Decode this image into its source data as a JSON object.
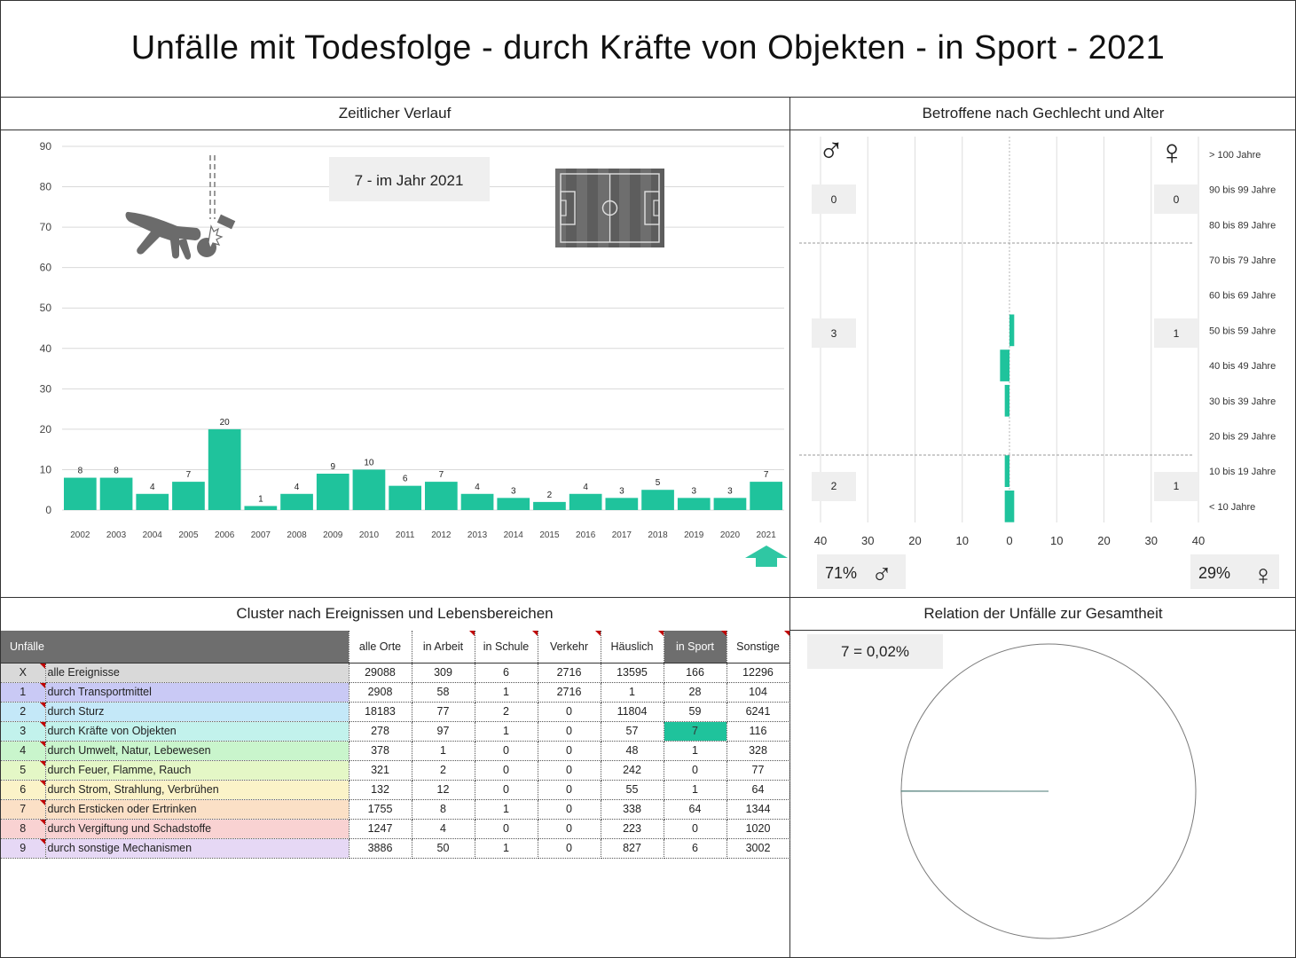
{
  "title": "Unfälle mit Todesfolge - durch Kräfte von Objekten - in Sport - 2021",
  "colors": {
    "accent": "#1fc39c",
    "header_dark": "#6e6e6e",
    "callout": "#efefef"
  },
  "timeline": {
    "heading": "Zeitlicher Verlauf",
    "callout": "7 - im Jahr 2021",
    "icons": [
      "falling-person-icon",
      "football-field-icon",
      "up-arrow-icon"
    ]
  },
  "demographics": {
    "heading": "Betroffene nach Gechlecht und Alter",
    "male_symbol": "♂",
    "female_symbol": "♀",
    "group_male": [
      "0",
      "3",
      "2"
    ],
    "group_female": [
      "0",
      "1",
      "1"
    ],
    "male_share": "71%",
    "female_share": "29%"
  },
  "cluster": {
    "heading": "Cluster nach Ereignissen und Lebensbereichen",
    "columns": [
      "Unfälle",
      "alle Orte",
      "in Arbeit",
      "in Schule",
      "Verkehr",
      "Häuslich",
      "in Sport",
      "Sonstige"
    ],
    "rows": [
      {
        "id": "X",
        "label": "alle Ereignisse",
        "color": "#d9d9d9",
        "values": [
          "29088",
          "309",
          "6",
          "2716",
          "13595",
          "166",
          "12296"
        ]
      },
      {
        "id": "1",
        "label": "durch Transportmittel",
        "color": "#c9c9f5",
        "values": [
          "2908",
          "58",
          "1",
          "2716",
          "1",
          "28",
          "104"
        ]
      },
      {
        "id": "2",
        "label": "durch Sturz",
        "color": "#c4e8f8",
        "values": [
          "18183",
          "77",
          "2",
          "0",
          "11804",
          "59",
          "6241"
        ]
      },
      {
        "id": "3",
        "label": "durch Kräfte von Objekten",
        "color": "#c2f2ec",
        "values": [
          "278",
          "97",
          "1",
          "0",
          "57",
          "7",
          "116"
        ]
      },
      {
        "id": "4",
        "label": "durch Umwelt, Natur, Lebewesen",
        "color": "#c9f5cc",
        "values": [
          "378",
          "1",
          "0",
          "0",
          "48",
          "1",
          "328"
        ]
      },
      {
        "id": "5",
        "label": "durch Feuer, Flamme, Rauch",
        "color": "#e4f7c6",
        "values": [
          "321",
          "2",
          "0",
          "0",
          "242",
          "0",
          "77"
        ]
      },
      {
        "id": "6",
        "label": "durch Strom, Strahlung, Verbrühen",
        "color": "#fbf3c8",
        "values": [
          "132",
          "12",
          "0",
          "0",
          "55",
          "1",
          "64"
        ]
      },
      {
        "id": "7",
        "label": "durch Ersticken oder Ertrinken",
        "color": "#fbe0c6",
        "values": [
          "1755",
          "8",
          "1",
          "0",
          "338",
          "64",
          "1344"
        ]
      },
      {
        "id": "8",
        "label": "durch Vergiftung und Schadstoffe",
        "color": "#f9d2d2",
        "values": [
          "1247",
          "4",
          "0",
          "0",
          "223",
          "0",
          "1020"
        ]
      },
      {
        "id": "9",
        "label": "durch sonstige Mechanismen",
        "color": "#e6d8f5",
        "values": [
          "3886",
          "50",
          "1",
          "0",
          "827",
          "6",
          "3002"
        ]
      }
    ]
  },
  "relation": {
    "heading": "Relation der Unfälle zur Gesamtheit",
    "callout": "7 =  0,02%",
    "share_value": 7,
    "share_total": 29088
  },
  "chart_data": [
    {
      "type": "bar",
      "categories": [
        "2002",
        "2003",
        "2004",
        "2005",
        "2006",
        "2007",
        "2008",
        "2009",
        "2010",
        "2011",
        "2012",
        "2013",
        "2014",
        "2015",
        "2016",
        "2017",
        "2018",
        "2019",
        "2020",
        "2021"
      ],
      "values": [
        8,
        8,
        4,
        7,
        20,
        1,
        4,
        9,
        10,
        6,
        7,
        4,
        3,
        2,
        4,
        3,
        5,
        3,
        3,
        7
      ],
      "ylim": [
        0,
        90
      ],
      "yticks": [
        0,
        10,
        20,
        30,
        40,
        50,
        60,
        70,
        80,
        90
      ],
      "grid": true
    },
    {
      "type": "bar",
      "orientation": "horizontal",
      "categories": [
        "> 100 Jahre",
        "90 bis 99 Jahre",
        "80 bis 89 Jahre",
        "70 bis 79 Jahre",
        "60 bis 69 Jahre",
        "50 bis 59 Jahre",
        "40 bis 49 Jahre",
        "30 bis 39 Jahre",
        "20 bis 29 Jahre",
        "10 bis 19 Jahre",
        "< 10 Jahre"
      ],
      "series": [
        {
          "values": [
            0,
            0,
            0,
            0,
            0,
            0,
            2,
            1,
            0,
            1,
            1
          ]
        },
        {
          "values": [
            0,
            0,
            0,
            0,
            0,
            1,
            0,
            0,
            0,
            0,
            1
          ]
        }
      ],
      "xticks": [
        "40",
        "30",
        "20",
        "10",
        "0",
        "10",
        "20",
        "30",
        "40"
      ],
      "xlim": [
        -40,
        40
      ],
      "grid": true
    },
    {
      "type": "pie",
      "values": [
        7,
        29081
      ]
    }
  ]
}
